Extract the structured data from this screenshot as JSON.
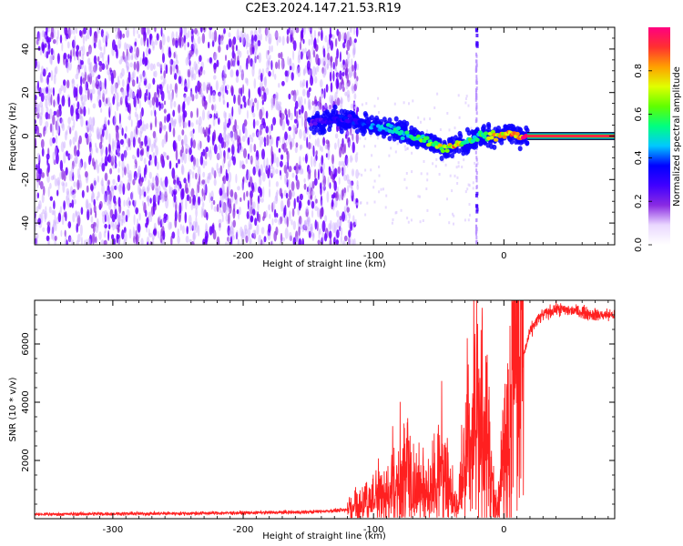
{
  "figure": {
    "title": "C2E3.2024.147.21.53.R19"
  },
  "chart_data": [
    {
      "type": "heatmap",
      "xlabel": "Height of straight line (km)",
      "ylabel": "Frequency (Hz)",
      "xlim": [
        -360,
        85
      ],
      "ylim": [
        -50,
        50
      ],
      "xticks": [
        -300,
        -200,
        -100,
        0
      ],
      "yticks": [
        -40,
        -20,
        0,
        20,
        40
      ],
      "colorbar": {
        "label": "Normalized spectral amplitude",
        "range": [
          0.0,
          1.0
        ],
        "ticks": [
          0.0,
          0.2,
          0.4,
          0.6,
          0.8
        ],
        "colormap": [
          "#ffffff",
          "#ead8ff",
          "#8a2be2",
          "#4000ff",
          "#0000ff",
          "#00c8ff",
          "#00ff80",
          "#60ff00",
          "#e0ff00",
          "#ffa000",
          "#ff3030",
          "#ff0080"
        ]
      },
      "noise_region_x": [
        -360,
        -120
      ],
      "ridge": {
        "x": [
          -148,
          -135,
          -125,
          -115,
          -105,
          -95,
          -85,
          -75,
          -65,
          -55,
          -45,
          -38,
          -30,
          -25,
          -20,
          -12,
          -5,
          0,
          5,
          10,
          15,
          20,
          85
        ],
        "freq": [
          6,
          7,
          8,
          7,
          5,
          4,
          3,
          1,
          -1,
          -3,
          -6,
          -4,
          -3,
          -2,
          0,
          0,
          0,
          1,
          1,
          0,
          0,
          0,
          0
        ],
        "amplitude": [
          0.25,
          0.3,
          0.35,
          0.35,
          0.4,
          0.45,
          0.5,
          0.55,
          0.6,
          0.65,
          0.8,
          0.85,
          0.7,
          0.6,
          0.6,
          0.7,
          0.8,
          0.85,
          0.9,
          0.95,
          1.0,
          1.0,
          1.0
        ]
      },
      "vertical_spike_x": -21
    },
    {
      "type": "line",
      "xlabel": "Height of straight line (km)",
      "ylabel": "SNR (10 * v/v)",
      "xlim": [
        -360,
        85
      ],
      "ylim": [
        0,
        7500
      ],
      "xticks": [
        -300,
        -200,
        -100,
        0
      ],
      "yticks": [
        2000,
        4000,
        6000
      ],
      "color": "#ff2020",
      "series": [
        {
          "x": [
            -360,
            -300,
            -250,
            -200,
            -150,
            -120,
            -110,
            -100,
            -95,
            -90,
            -85,
            -80,
            -75,
            -70,
            -65,
            -60,
            -55,
            -50,
            -45,
            -40,
            -35,
            -30,
            -25,
            -20,
            -15,
            -10,
            -5,
            0,
            5,
            10,
            15,
            20,
            25,
            30,
            40,
            50,
            60,
            70,
            85
          ],
          "y": [
            150,
            170,
            180,
            200,
            230,
            300,
            450,
            600,
            800,
            900,
            1000,
            1200,
            1500,
            1100,
            900,
            700,
            1000,
            1600,
            1400,
            700,
            300,
            1500,
            2500,
            3000,
            2600,
            1000,
            300,
            1800,
            3500,
            4500,
            5600,
            6400,
            6800,
            7000,
            7200,
            7150,
            7100,
            7000,
            7000
          ]
        }
      ]
    }
  ]
}
